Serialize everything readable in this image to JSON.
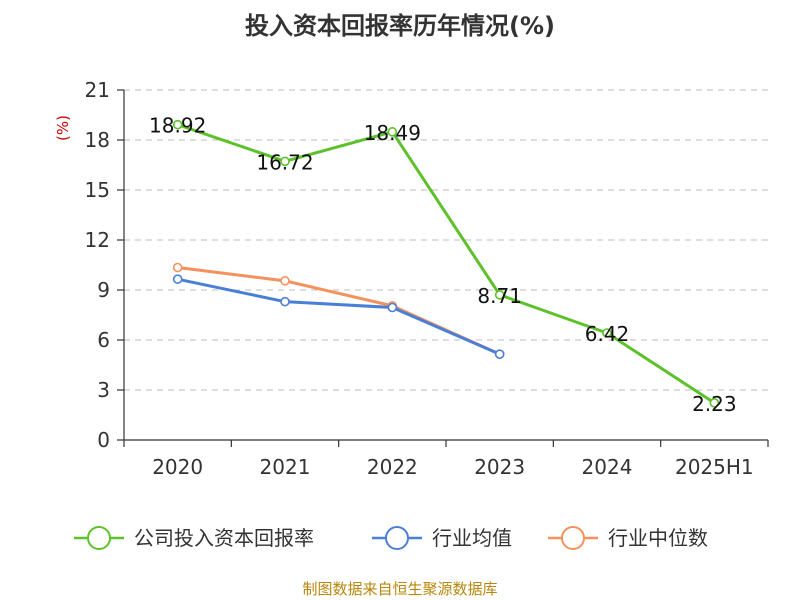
{
  "chart_data": {
    "type": "line",
    "title": "投入资本回报率历年情况(%)",
    "unit_label": "(%)",
    "categories": [
      "2020",
      "2021",
      "2022",
      "2023",
      "2024",
      "2025H1"
    ],
    "ylim": [
      0,
      21
    ],
    "yticks": [
      "0",
      "3",
      "6",
      "9",
      "12",
      "15",
      "18",
      "21"
    ],
    "grid": true,
    "legend_position": "bottom",
    "series": [
      {
        "name": "公司投入资本回报率",
        "color": "#5cc12a",
        "values": [
          18.92,
          16.72,
          18.49,
          8.71,
          6.42,
          2.23
        ],
        "labels": [
          "18.92",
          "16.72",
          "18.49",
          "8.71",
          "6.42",
          "2.23"
        ]
      },
      {
        "name": "行业均值",
        "color": "#4a7fd6",
        "values": [
          9.65,
          8.3,
          7.95,
          5.15,
          null,
          null
        ]
      },
      {
        "name": "行业中位数",
        "color": "#f5915c",
        "values": [
          10.35,
          9.55,
          8.05,
          5.15,
          null,
          null
        ]
      }
    ]
  },
  "source": "制图数据来自恒生聚源数据库"
}
